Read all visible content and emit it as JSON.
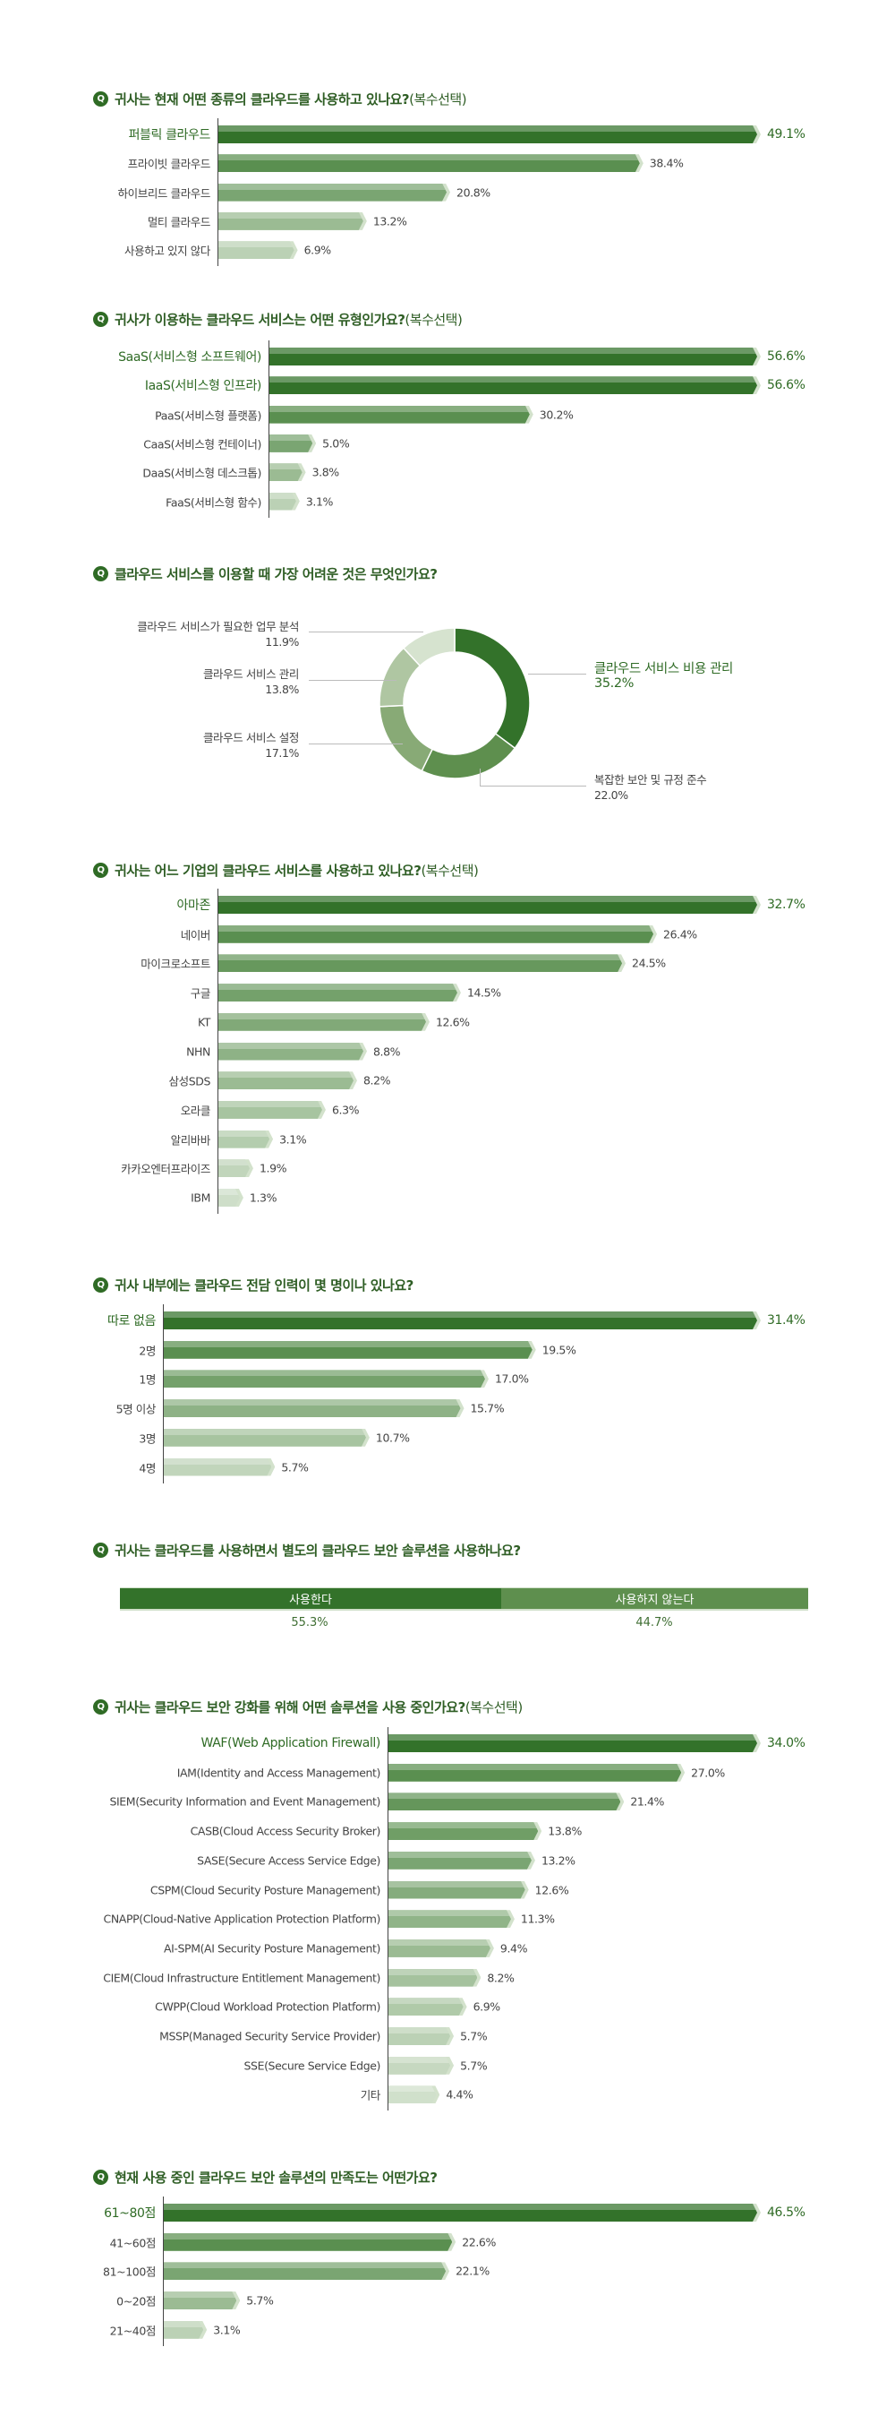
{
  "colors": {
    "top": "#33722a",
    "ramp_start": "#5a8f50",
    "ramp_end": "#dbe7d6",
    "title": "#2f5e25",
    "q_badge": "#2f6b25"
  },
  "q_icon": "Q",
  "bar_charts": [
    {
      "title": "귀사는 현재 어떤 종류의 클라우드를 사용하고 있나요?",
      "subtitle": "(복수선택)",
      "categories": [
        "퍼블릭 클라우드",
        "프라이빗 클라우드",
        "하이브리드 클라우드",
        "멀티 클라우드",
        "사용하고 있지 않다"
      ],
      "values": [
        49.1,
        38.4,
        20.8,
        13.2,
        6.9
      ],
      "labels": [
        "49.1%",
        "38.4%",
        "20.8%",
        "13.2%",
        "6.9%"
      ]
    },
    {
      "title": "귀사가 이용하는 클라우드 서비스는 어떤 유형인가요?",
      "subtitle": "(복수선택)",
      "categories": [
        "SaaS(서비스형 소프트웨어)",
        "IaaS(서비스형 인프라)",
        "PaaS(서비스형 플랫폼)",
        "CaaS(서비스형 컨테이너)",
        "DaaS(서비스형 데스크톱)",
        "FaaS(서비스형 함수)"
      ],
      "values": [
        56.6,
        56.6,
        30.2,
        5.0,
        3.8,
        3.1
      ],
      "labels": [
        "56.6%",
        "56.6%",
        "30.2%",
        "5.0%",
        "3.8%",
        "3.1%"
      ],
      "highlight_count": 2
    },
    {
      "title": "귀사는 어느 기업의 클라우드 서비스를 사용하고 있나요?",
      "subtitle": "(복수선택)",
      "categories": [
        "아마존",
        "네이버",
        "마이크로소프트",
        "구글",
        "KT",
        "NHN",
        "삼성SDS",
        "오라클",
        "알리바바",
        "카카오엔터프라이즈",
        "IBM"
      ],
      "values": [
        32.7,
        26.4,
        24.5,
        14.5,
        12.6,
        8.8,
        8.2,
        6.3,
        3.1,
        1.9,
        1.3
      ],
      "labels": [
        "32.7%",
        "26.4%",
        "24.5%",
        "14.5%",
        "12.6%",
        "8.8%",
        "8.2%",
        "6.3%",
        "3.1%",
        "1.9%",
        "1.3%"
      ]
    },
    {
      "title": "귀사 내부에는 클라우드 전담 인력이 몇 명이나 있나요?",
      "subtitle": "",
      "categories": [
        "따로 없음",
        "2명",
        "1명",
        "5명 이상",
        "3명",
        "4명"
      ],
      "values": [
        31.4,
        19.5,
        17.0,
        15.7,
        10.7,
        5.7
      ],
      "labels": [
        "31.4%",
        "19.5%",
        "17.0%",
        "15.7%",
        "10.7%",
        "5.7%"
      ]
    },
    {
      "title": "귀사는 클라우드 보안 강화를 위해 어떤 솔루션을 사용 중인가요?",
      "subtitle": "(복수선택)",
      "categories": [
        "WAF(Web Application Firewall)",
        "IAM(Identity and Access Management)",
        "SIEM(Security Information and Event Management)",
        "CASB(Cloud Access Security Broker)",
        "SASE(Secure Access Service Edge)",
        "CSPM(Cloud Security Posture Management)",
        "CNAPP(Cloud-Native Application Protection Platform)",
        "AI-SPM(AI Security Posture Management)",
        "CIEM(Cloud Infrastructure Entitlement Management)",
        "CWPP(Cloud Workload Protection Platform)",
        "MSSP(Managed Security Service Provider)",
        "SSE(Secure Service Edge)",
        "기타"
      ],
      "values": [
        34.0,
        27.0,
        21.4,
        13.8,
        13.2,
        12.6,
        11.3,
        9.4,
        8.2,
        6.9,
        5.7,
        5.7,
        4.4
      ],
      "labels": [
        "34.0%",
        "27.0%",
        "21.4%",
        "13.8%",
        "13.2%",
        "12.6%",
        "11.3%",
        "9.4%",
        "8.2%",
        "6.9%",
        "5.7%",
        "5.7%",
        "4.4%"
      ]
    },
    {
      "title": "현재 사용 중인 클라우드 보안 솔루션의 만족도는 어떤가요?",
      "subtitle": "",
      "categories": [
        "61~80점",
        "41~60점",
        "81~100점",
        "0~20점",
        "21~40점"
      ],
      "values": [
        46.5,
        22.6,
        22.1,
        5.7,
        3.1
      ],
      "labels": [
        "46.5%",
        "22.6%",
        "22.1%",
        "5.7%",
        "3.1%"
      ]
    }
  ],
  "chart_data": [
    {
      "type": "bar",
      "orientation": "horizontal",
      "title": "귀사는 현재 어떤 종류의 클라우드를 사용하고 있나요?(복수선택)",
      "categories": [
        "퍼블릭 클라우드",
        "프라이빗 클라우드",
        "하이브리드 클라우드",
        "멀티 클라우드",
        "사용하고 있지 않다"
      ],
      "values": [
        49.1,
        38.4,
        20.8,
        13.2,
        6.9
      ]
    },
    {
      "type": "bar",
      "orientation": "horizontal",
      "title": "귀사가 이용하는 클라우드 서비스는 어떤 유형인가요?(복수선택)",
      "categories": [
        "SaaS(서비스형 소프트웨어)",
        "IaaS(서비스형 인프라)",
        "PaaS(서비스형 플랫폼)",
        "CaaS(서비스형 컨테이너)",
        "DaaS(서비스형 데스크톱)",
        "FaaS(서비스형 함수)"
      ],
      "values": [
        56.6,
        56.6,
        30.2,
        5.0,
        3.8,
        3.1
      ]
    },
    {
      "type": "pie",
      "donut": true,
      "title": "클라우드 서비스를 이용할 때 가장 어려운 것은 무엇인가요?",
      "categories": [
        "클라우드 서비스 비용 관리",
        "복잡한 보안 및 규정 준수",
        "클라우드 서비스 설정",
        "클라우드 서비스 관리",
        "클라우드 서비스가 필요한 업무 분석"
      ],
      "values": [
        35.2,
        22.0,
        17.1,
        13.8,
        11.9
      ],
      "colors": [
        "#33722a",
        "#5e8f4e",
        "#88aa76",
        "#afc6a2",
        "#d6e3cf"
      ]
    },
    {
      "type": "bar",
      "orientation": "horizontal",
      "title": "귀사는 어느 기업의 클라우드 서비스를 사용하고 있나요?(복수선택)",
      "categories": [
        "아마존",
        "네이버",
        "마이크로소프트",
        "구글",
        "KT",
        "NHN",
        "삼성SDS",
        "오라클",
        "알리바바",
        "카카오엔터프라이즈",
        "IBM"
      ],
      "values": [
        32.7,
        26.4,
        24.5,
        14.5,
        12.6,
        8.8,
        8.2,
        6.3,
        3.1,
        1.9,
        1.3
      ]
    },
    {
      "type": "bar",
      "orientation": "horizontal",
      "title": "귀사 내부에는 클라우드 전담 인력이 몇 명이나 있나요?",
      "categories": [
        "따로 없음",
        "2명",
        "1명",
        "5명 이상",
        "3명",
        "4명"
      ],
      "values": [
        31.4,
        19.5,
        17.0,
        15.7,
        10.7,
        5.7
      ]
    },
    {
      "type": "bar",
      "stacked": true,
      "title": "귀사는 클라우드를 사용하면서 별도의 클라우드 보안 솔루션을 사용하나요?",
      "categories": [
        "사용한다",
        "사용하지 않는다"
      ],
      "values": [
        55.3,
        44.7
      ],
      "colors": [
        "#33722a",
        "#5e8f4e"
      ]
    },
    {
      "type": "bar",
      "orientation": "horizontal",
      "title": "귀사는 클라우드 보안 강화를 위해 어떤 솔루션을 사용 중인가요?(복수선택)",
      "categories": [
        "WAF",
        "IAM",
        "SIEM",
        "CASB",
        "SASE",
        "CSPM",
        "CNAPP",
        "AI-SPM",
        "CIEM",
        "CWPP",
        "MSSP",
        "SSE",
        "기타"
      ],
      "values": [
        34.0,
        27.0,
        21.4,
        13.8,
        13.2,
        12.6,
        11.3,
        9.4,
        8.2,
        6.9,
        5.7,
        5.7,
        4.4
      ]
    },
    {
      "type": "bar",
      "orientation": "horizontal",
      "title": "현재 사용 중인 클라우드 보안 솔루션의 만족도는 어떤가요?",
      "categories": [
        "61~80점",
        "41~60점",
        "81~100점",
        "0~20점",
        "21~40점"
      ],
      "values": [
        46.5,
        22.6,
        22.1,
        5.7,
        3.1
      ]
    }
  ],
  "donut": {
    "title": "클라우드 서비스를 이용할 때 가장 어려운 것은 무엇인가요?",
    "segments": [
      {
        "label": "클라우드 서비스 비용 관리",
        "value": 35.2,
        "pct": "35.2%",
        "color": "#33722a"
      },
      {
        "label": "복잡한 보안 및 규정 준수",
        "value": 22.0,
        "pct": "22.0%",
        "color": "#5e8f4e"
      },
      {
        "label": "클라우드 서비스 설정",
        "value": 17.1,
        "pct": "17.1%",
        "color": "#88aa76"
      },
      {
        "label": "클라우드 서비스 관리",
        "value": 13.8,
        "pct": "13.8%",
        "color": "#afc6a2"
      },
      {
        "label": "클라우드 서비스가 필요한 업무 분석",
        "value": 11.9,
        "pct": "11.9%",
        "color": "#d6e3cf"
      }
    ]
  },
  "stacked": {
    "title": "귀사는 클라우드를 사용하면서 별도의 클라우드 보안 솔루션을 사용하나요?",
    "parts": [
      {
        "label": "사용한다",
        "value": 55.3,
        "pct": "55.3%",
        "color": "#33722a"
      },
      {
        "label": "사용하지 않는다",
        "value": 44.7,
        "pct": "44.7%",
        "color": "#5e8f4e"
      }
    ]
  }
}
